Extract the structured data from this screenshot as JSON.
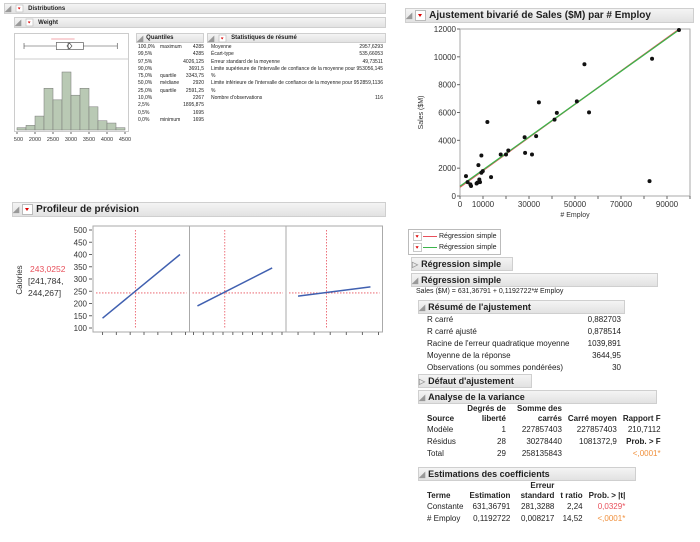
{
  "distributions": {
    "title": "Distributions",
    "variable": "Weight",
    "histogram": {
      "bin_start": 1500,
      "bin_width": 250,
      "counts": [
        1,
        2,
        6,
        18,
        13,
        25,
        15,
        18,
        10,
        4,
        3,
        1
      ],
      "ticks": [
        "1500",
        "2000",
        "2500",
        "3000",
        "3500",
        "4000",
        "4500"
      ],
      "bar_color": "#b9c9b4"
    },
    "boxplot": {
      "min": 1695,
      "q1": 2591.25,
      "median": 2920,
      "q3": 3343.75,
      "max": 4285,
      "mean": 2957.6
    },
    "quantiles": {
      "title": "Quantiles",
      "rows": [
        [
          "100,0%",
          "maximum",
          "4285"
        ],
        [
          "99,5%",
          "",
          "4285"
        ],
        [
          "97,5%",
          "",
          "4026,125"
        ],
        [
          "90,0%",
          "",
          "3691,5"
        ],
        [
          "75,0%",
          "quartile",
          "3343,75"
        ],
        [
          "50,0%",
          "médiane",
          "2920"
        ],
        [
          "25,0%",
          "quartile",
          "2591,25"
        ],
        [
          "10,0%",
          "",
          "2267"
        ],
        [
          "2,5%",
          "",
          "1895,875"
        ],
        [
          "0,5%",
          "",
          "1695"
        ],
        [
          "0,0%",
          "minimum",
          "1695"
        ]
      ]
    },
    "summary": {
      "title": "Statistiques de résumé",
      "rows": [
        [
          "Moyenne",
          "2957,6293"
        ],
        [
          "Écart-type",
          "535,66053"
        ],
        [
          "Erreur standard de la moyenne",
          "49,73511"
        ],
        [
          "Limite supérieure de l'intervalle de confiance de la moyenne pour 95 %",
          "3056,145"
        ],
        [
          "Limite inférieure de l'intervalle de confiance de la moyenne pour 95 %",
          "2859,1136"
        ],
        [
          "Nombre d'observations",
          "116"
        ]
      ]
    }
  },
  "profiler": {
    "title": "Profileur de prévision",
    "response": "Calories",
    "response_value": "243,0252",
    "ci_low": "[241,784,",
    "ci_high": "244,267]",
    "yticks": [
      "500",
      "450",
      "400",
      "350",
      "300",
      "250",
      "200",
      "150",
      "100"
    ],
    "ymin": 100,
    "ymax": 500,
    "current_y": 243.0252,
    "factors": [
      {
        "name": "Total fat g",
        "value": "11,873",
        "current": 11.873,
        "min": -2,
        "max": 30,
        "ticks": [
          "0",
          "5",
          "10",
          "15",
          "20",
          "25",
          "30"
        ],
        "line": [
          [
            0,
            140
          ],
          [
            28,
            400
          ]
        ]
      },
      {
        "name": "Carbohydrate g",
        "value": "30,907",
        "current": 30.907,
        "min": 15,
        "max": 60,
        "ticks": [
          "15",
          "20",
          "25",
          "30",
          "35",
          "40",
          "45",
          "50",
          "55",
          "60"
        ],
        "line": [
          [
            17,
            190
          ],
          [
            55,
            345
          ]
        ]
      },
      {
        "name": "Protein g",
        "value": "3,5467",
        "current": 3.5467,
        "min": -1,
        "max": 10,
        "ticks": [
          "0",
          "2",
          "4",
          "6",
          "8",
          "10"
        ],
        "line": [
          [
            0,
            230
          ],
          [
            9,
            268
          ]
        ]
      }
    ]
  },
  "bivariate": {
    "title": "Ajustement bivarié de Sales ($M) par # Employ",
    "chart_data": {
      "type": "scatter",
      "xlabel": "# Employ",
      "ylabel": "Sales ($M)",
      "xlim": [
        0,
        100000
      ],
      "ylim": [
        0,
        12000
      ],
      "xticks": [
        "0",
        "10000",
        "30000",
        "50000",
        "70000",
        "90000"
      ],
      "yticks": [
        "0",
        "2000",
        "4000",
        "6000",
        "8000",
        "10000",
        "12000"
      ],
      "points": [
        [
          2600,
          1430
        ],
        [
          3300,
          1000
        ],
        [
          4500,
          835
        ],
        [
          4800,
          715
        ],
        [
          7200,
          900
        ],
        [
          7600,
          960
        ],
        [
          8000,
          2220
        ],
        [
          8400,
          1190
        ],
        [
          8700,
          1000
        ],
        [
          9300,
          1670
        ],
        [
          9900,
          1790
        ],
        [
          9300,
          2910
        ],
        [
          11900,
          5320
        ],
        [
          13500,
          1360
        ],
        [
          17700,
          2980
        ],
        [
          21000,
          3270
        ],
        [
          20000,
          2980
        ],
        [
          28100,
          4220
        ],
        [
          28300,
          3100
        ],
        [
          31300,
          2980
        ],
        [
          33100,
          4300
        ],
        [
          34300,
          6730
        ],
        [
          41100,
          5490
        ],
        [
          42100,
          5970
        ],
        [
          50800,
          6800
        ],
        [
          54100,
          9470
        ],
        [
          56100,
          6010
        ],
        [
          82400,
          1070
        ],
        [
          83500,
          9860
        ],
        [
          95200,
          11930
        ]
      ],
      "fits": [
        {
          "name": "Régression simple",
          "color": "#e8505b",
          "intercept": 631.36791,
          "slope": 0.1192722
        },
        {
          "name": "Régression simple",
          "color": "#3cb44b",
          "intercept": 700,
          "slope": 0.118
        }
      ]
    }
  },
  "regression_closed": "Régression simple",
  "regression": {
    "title": "Régression simple",
    "equation": "Sales ($M) = 631,36791 + 0,1192722*# Employ",
    "fit_summary": {
      "title": "Résumé de l'ajustement",
      "rows": [
        [
          "R carré",
          "0,882703"
        ],
        [
          "R carré ajusté",
          "0,878514"
        ],
        [
          "Racine de l'erreur quadratique moyenne",
          "1039,891"
        ],
        [
          "Moyenne de la réponse",
          "3644,95"
        ],
        [
          "Observations (ou sommes pondérées)",
          "30"
        ]
      ]
    },
    "lack_of_fit": "Défaut d'ajustement",
    "anova": {
      "title": "Analyse de la variance",
      "headers": [
        "Source",
        "Degrés de liberté",
        "Somme des carrés",
        "Carré moyen",
        "Rapport F"
      ],
      "rows": [
        [
          "Modèle",
          "1",
          "227857403",
          "227857403",
          "210,7112"
        ],
        [
          "Résidus",
          "28",
          "30278440",
          "1081372,9",
          "Prob. > F"
        ],
        [
          "Total",
          "29",
          "258135843",
          "",
          "<,0001*"
        ]
      ]
    },
    "estimates": {
      "title": "Estimations des coefficients",
      "headers": [
        "Terme",
        "Estimation",
        "Erreur standard",
        "t ratio",
        "Prob. > |t|"
      ],
      "rows": [
        [
          "Constante",
          "631,36791",
          "281,3288",
          "2,24",
          "0,0329*"
        ],
        [
          "# Employ",
          "0,1192722",
          "0,008217",
          "14,52",
          "<,0001*"
        ]
      ]
    }
  }
}
